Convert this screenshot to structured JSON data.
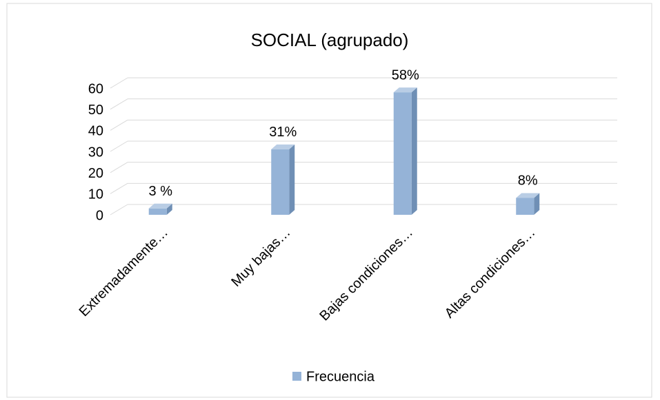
{
  "chart_data": {
    "type": "bar",
    "title": "SOCIAL (agrupado)",
    "categories": [
      "Extremadamente…",
      "Muy bajas…",
      "Bajas condiciones…",
      "Altas condiciones…"
    ],
    "series": [
      {
        "name": "Frecuencia",
        "color": "#95b3d7",
        "values": [
          3,
          31,
          58,
          8
        ],
        "value_labels": [
          "3 %",
          "31%",
          "58%",
          "8%"
        ]
      }
    ],
    "ylim": [
      0,
      60
    ],
    "yticks": [
      0,
      10,
      20,
      30,
      40,
      50,
      60
    ],
    "grid": true,
    "legend": "bottom"
  }
}
